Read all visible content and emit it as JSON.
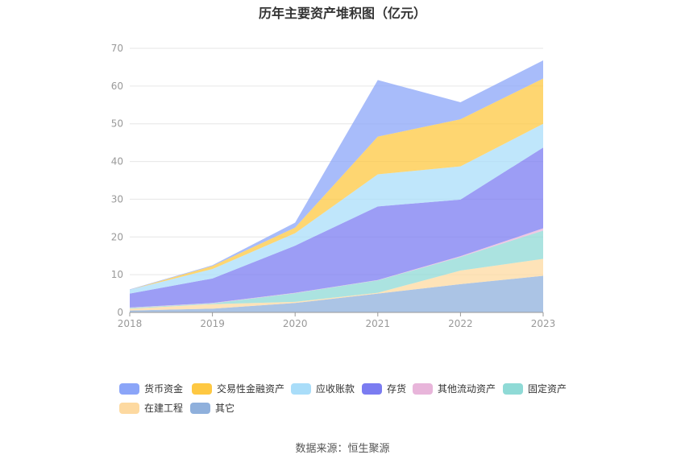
{
  "title": "历年主要资产堆积图（亿元）",
  "source": "数据来源：恒生聚源",
  "chart_data": {
    "type": "area",
    "stacked": true,
    "title": "历年主要资产堆积图（亿元）",
    "categories": [
      "2018",
      "2019",
      "2020",
      "2021",
      "2022",
      "2023"
    ],
    "ylim": [
      0,
      70
    ],
    "yticks": [
      0,
      10,
      20,
      30,
      40,
      50,
      60,
      70
    ],
    "grid": true,
    "legend_position": "bottom",
    "series": [
      {
        "name": "其它",
        "color": "#8fb0dc",
        "values": [
          0.5,
          1.0,
          2.5,
          5.0,
          7.5,
          9.7
        ]
      },
      {
        "name": "在建工程",
        "color": "#fdd9a0",
        "values": [
          0.5,
          1.2,
          0.3,
          0.2,
          3.6,
          4.5
        ]
      },
      {
        "name": "固定资产",
        "color": "#8fdad6",
        "values": [
          0.2,
          0.2,
          2.3,
          3.3,
          3.6,
          7.5
        ]
      },
      {
        "name": "其他流动资产",
        "color": "#e8b5da",
        "values": [
          0.1,
          0.1,
          0.1,
          0.1,
          0.2,
          0.6
        ]
      },
      {
        "name": "存货",
        "color": "#7b7cf1",
        "values": [
          3.7,
          6.5,
          12.5,
          19.5,
          15.0,
          21.4
        ]
      },
      {
        "name": "应收账款",
        "color": "#a9ddf9",
        "values": [
          1.0,
          2.5,
          3.3,
          8.5,
          8.8,
          6.3
        ]
      },
      {
        "name": "交易性金融资产",
        "color": "#fec842",
        "values": [
          0.0,
          0.8,
          1.5,
          10.0,
          12.5,
          12.0
        ]
      },
      {
        "name": "货币资金",
        "color": "#8ba5f8",
        "values": [
          0.1,
          0.2,
          1.3,
          15.0,
          4.5,
          4.8
        ]
      }
    ]
  },
  "legend": [
    {
      "label": "货币资金",
      "color": "#8ba5f8"
    },
    {
      "label": "交易性金融资产",
      "color": "#fec842"
    },
    {
      "label": "应收账款",
      "color": "#a9ddf9"
    },
    {
      "label": "存货",
      "color": "#7b7cf1"
    },
    {
      "label": "其他流动资产",
      "color": "#e8b5da"
    },
    {
      "label": "固定资产",
      "color": "#8fdad6"
    },
    {
      "label": "在建工程",
      "color": "#fdd9a0"
    },
    {
      "label": "其它",
      "color": "#8fb0dc"
    }
  ]
}
